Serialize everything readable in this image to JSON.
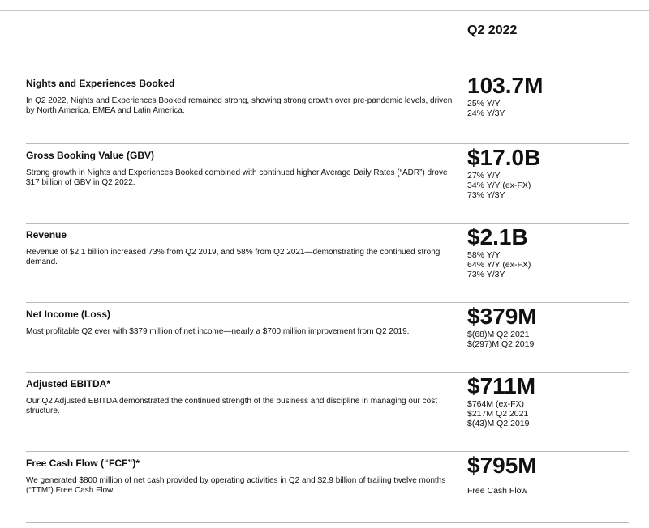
{
  "header": {
    "period": "Q2 2022"
  },
  "rows": [
    {
      "title": "Nights and Experiences Booked",
      "description": "In Q2 2022, Nights and Experiences Booked remained strong, showing strong growth over pre-pandemic levels, driven by North America, EMEA and Latin America.",
      "value": "103.7M",
      "notes": [
        "25% Y/Y",
        "24% Y/3Y"
      ]
    },
    {
      "title": "Gross Booking Value (GBV)",
      "description": "Strong growth in Nights and Experiences Booked combined with continued higher Average Daily Rates (“ADR”) drove $17 billion of GBV in Q2 2022.",
      "value": "$17.0B",
      "notes": [
        "27% Y/Y",
        "34% Y/Y (ex-FX)",
        "73% Y/3Y"
      ]
    },
    {
      "title": "Revenue",
      "description": "Revenue of $2.1 billion increased 73% from Q2 2019, and 58% from Q2 2021—demonstrating the continued strong demand.",
      "value": "$2.1B",
      "notes": [
        "58% Y/Y",
        "64% Y/Y (ex-FX)",
        "73% Y/3Y"
      ]
    },
    {
      "title": "Net Income (Loss)",
      "description": "Most profitable Q2 ever with $379 million of net income—nearly a $700 million improvement from Q2 2019.",
      "value": "$379M",
      "notes": [
        "$(68)M Q2 2021",
        "$(297)M Q2 2019"
      ]
    },
    {
      "title": "Adjusted EBITDA*",
      "description": "Our Q2 Adjusted EBITDA demonstrated the continued strength of the business and discipline in managing our cost structure.",
      "value": "$711M",
      "notes": [
        "$764M (ex-FX)",
        "$217M Q2 2021",
        "$(43)M Q2 2019"
      ]
    },
    {
      "title": "Free Cash Flow (“FCF”)*",
      "description": "We generated $800 million of net cash provided by operating activities in Q2 and $2.9 billion of trailing twelve months (“TTM”) Free Cash Flow.",
      "value": "$795M",
      "notes": [
        "Free Cash Flow"
      ]
    }
  ]
}
